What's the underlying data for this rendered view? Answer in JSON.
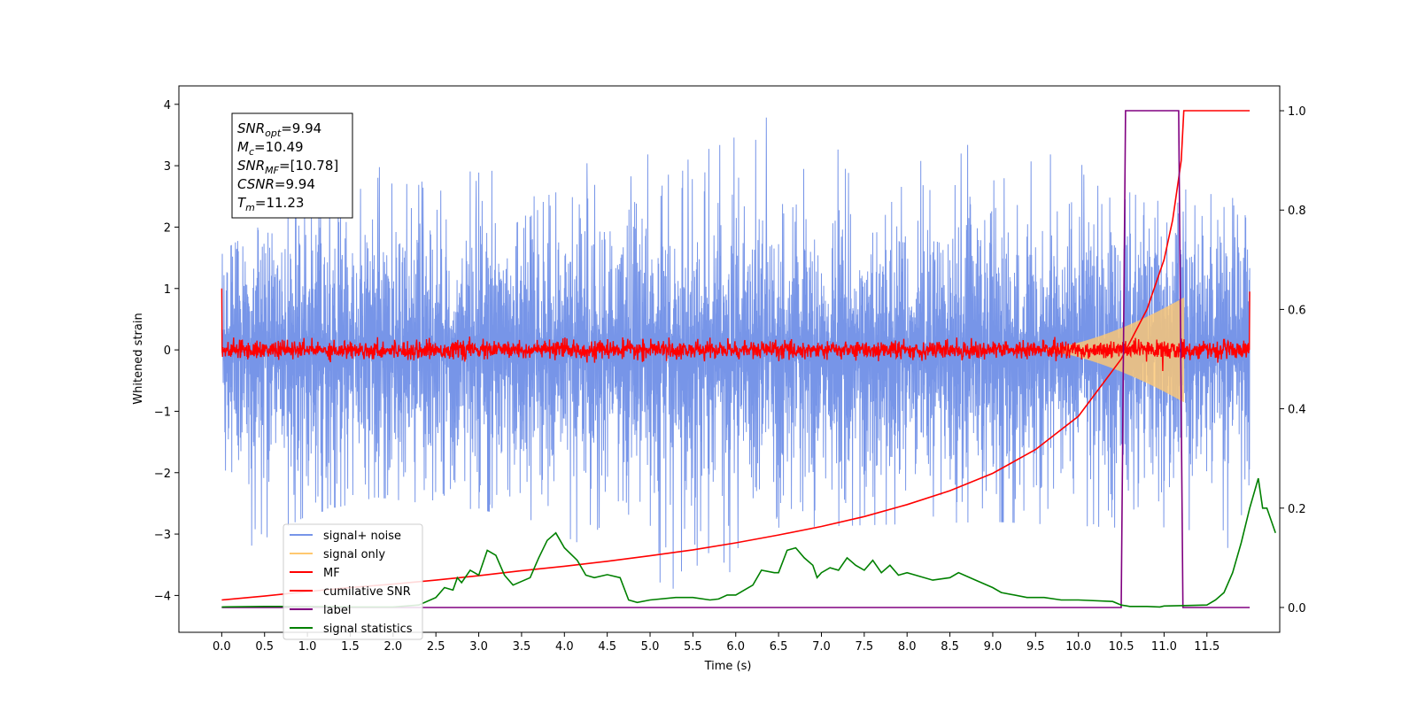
{
  "chart_data": {
    "type": "line",
    "xlabel": "Time (s)",
    "ylabel": "Whitened strain",
    "xlim": [
      -0.5,
      12.35
    ],
    "ylim": [
      -4.6,
      4.3
    ],
    "y2lim": [
      -0.05,
      1.05
    ],
    "x_ticks": [
      "0.0",
      "0.5",
      "1.0",
      "1.5",
      "2.0",
      "2.5",
      "3.0",
      "3.5",
      "4.0",
      "4.5",
      "5.0",
      "5.5",
      "6.0",
      "6.5",
      "7.0",
      "7.5",
      "8.0",
      "8.5",
      "9.0",
      "9.5",
      "10.0",
      "10.5",
      "11.0",
      "11.5"
    ],
    "y_ticks": [
      "4",
      "3",
      "2",
      "1",
      "0",
      "−1",
      "−2",
      "−3",
      "−4"
    ],
    "y2_ticks": [
      "1.0",
      "0.8",
      "0.6",
      "0.4",
      "0.2",
      "0.0"
    ],
    "info_lines": [
      {
        "name": "SNR",
        "sub": "opt",
        "value": "=9.94"
      },
      {
        "name": "M",
        "sub": "c",
        "value": "=10.49"
      },
      {
        "name": "SNR",
        "sub": "MF",
        "value": "=[10.78]"
      },
      {
        "name": "CSNR",
        "sub": "",
        "value": "=9.94"
      },
      {
        "name": "T",
        "sub": "m",
        "value": "=11.23"
      }
    ],
    "legend": {
      "position": "lower-left",
      "entries": [
        {
          "label": "signal+ noise",
          "color": "#7795e8"
        },
        {
          "label": "signal only",
          "color": "#ffc870"
        },
        {
          "label": "MF",
          "color": "#ff0000"
        },
        {
          "label": "cumilative SNR",
          "color": "#ff0000"
        },
        {
          "label": "label",
          "color": "#800080"
        },
        {
          "label": "signal statistics",
          "color": "#008000"
        }
      ]
    },
    "series": [
      {
        "name": "signal+ noise",
        "axis": "left",
        "color": "#7795e8",
        "style": "noise-band",
        "x_range": [
          0,
          12.0
        ],
        "envelope_max": [
          [
            0,
            1.6
          ],
          [
            1.5,
            3.0
          ],
          [
            3,
            2.9
          ],
          [
            4.8,
            3.1
          ],
          [
            6.45,
            3.9
          ],
          [
            7.5,
            3.0
          ],
          [
            9.1,
            3.45
          ],
          [
            10.5,
            2.8
          ],
          [
            11.9,
            2.45
          ],
          [
            12.0,
            1.9
          ]
        ],
        "envelope_min": [
          [
            0,
            -3.45
          ],
          [
            1.0,
            -2.7
          ],
          [
            1.8,
            -2.4
          ],
          [
            3.5,
            -2.7
          ],
          [
            5.73,
            -4.2
          ],
          [
            6.4,
            -2.9
          ],
          [
            9.0,
            -2.8
          ],
          [
            10.5,
            -2.9
          ],
          [
            11.9,
            -3.3
          ],
          [
            12.0,
            -3.55
          ]
        ],
        "typical_amplitude": 1.5
      },
      {
        "name": "signal only",
        "axis": "left",
        "color": "#ffc870",
        "style": "chirp",
        "x_range": [
          9.5,
          11.23
        ],
        "peak_amplitude": 0.85
      },
      {
        "name": "MF",
        "axis": "left",
        "color": "#ff0000",
        "style": "noise-band",
        "x_range": [
          0,
          12.0
        ],
        "typical_amplitude": 0.12,
        "endpoints": [
          1.0,
          0.95
        ]
      },
      {
        "name": "cumilative SNR",
        "axis": "right",
        "color": "#ff0000",
        "points": [
          [
            0,
            0.015
          ],
          [
            0.5,
            0.023
          ],
          [
            1,
            0.032
          ],
          [
            1.5,
            0.04
          ],
          [
            2,
            0.047
          ],
          [
            2.5,
            0.055
          ],
          [
            3,
            0.064
          ],
          [
            3.5,
            0.074
          ],
          [
            4,
            0.083
          ],
          [
            4.5,
            0.093
          ],
          [
            5,
            0.104
          ],
          [
            5.5,
            0.116
          ],
          [
            6,
            0.13
          ],
          [
            6.5,
            0.146
          ],
          [
            7,
            0.163
          ],
          [
            7.5,
            0.183
          ],
          [
            8,
            0.207
          ],
          [
            8.5,
            0.235
          ],
          [
            9,
            0.27
          ],
          [
            9.5,
            0.318
          ],
          [
            10,
            0.385
          ],
          [
            10.5,
            0.5
          ],
          [
            10.8,
            0.6
          ],
          [
            11.0,
            0.7
          ],
          [
            11.1,
            0.78
          ],
          [
            11.2,
            0.9
          ],
          [
            11.23,
            1.0
          ],
          [
            12.0,
            1.0
          ]
        ]
      },
      {
        "name": "label",
        "axis": "right",
        "color": "#800080",
        "points": [
          [
            0,
            0
          ],
          [
            10.5,
            0
          ],
          [
            10.55,
            1
          ],
          [
            11.17,
            1
          ],
          [
            11.22,
            0
          ],
          [
            12.0,
            0
          ]
        ]
      },
      {
        "name": "signal statistics",
        "axis": "right",
        "color": "#008000",
        "points": [
          [
            0,
            0.001
          ],
          [
            0.5,
            0.002
          ],
          [
            1,
            0.002
          ],
          [
            1.5,
            0.001
          ],
          [
            2,
            0.001
          ],
          [
            2.3,
            0.005
          ],
          [
            2.5,
            0.02
          ],
          [
            2.6,
            0.04
          ],
          [
            2.7,
            0.035
          ],
          [
            2.75,
            0.06
          ],
          [
            2.8,
            0.05
          ],
          [
            2.9,
            0.075
          ],
          [
            3.0,
            0.065
          ],
          [
            3.1,
            0.115
          ],
          [
            3.2,
            0.105
          ],
          [
            3.3,
            0.065
          ],
          [
            3.4,
            0.045
          ],
          [
            3.6,
            0.06
          ],
          [
            3.7,
            0.1
          ],
          [
            3.8,
            0.135
          ],
          [
            3.9,
            0.15
          ],
          [
            4.0,
            0.12
          ],
          [
            4.15,
            0.095
          ],
          [
            4.25,
            0.065
          ],
          [
            4.35,
            0.06
          ],
          [
            4.5,
            0.066
          ],
          [
            4.65,
            0.06
          ],
          [
            4.75,
            0.015
          ],
          [
            4.85,
            0.01
          ],
          [
            5.0,
            0.015
          ],
          [
            5.3,
            0.02
          ],
          [
            5.5,
            0.02
          ],
          [
            5.7,
            0.015
          ],
          [
            5.8,
            0.017
          ],
          [
            5.9,
            0.025
          ],
          [
            6.0,
            0.025
          ],
          [
            6.1,
            0.035
          ],
          [
            6.2,
            0.045
          ],
          [
            6.3,
            0.075
          ],
          [
            6.45,
            0.07
          ],
          [
            6.5,
            0.07
          ],
          [
            6.6,
            0.115
          ],
          [
            6.7,
            0.12
          ],
          [
            6.8,
            0.1
          ],
          [
            6.9,
            0.085
          ],
          [
            6.95,
            0.06
          ],
          [
            7.0,
            0.07
          ],
          [
            7.1,
            0.08
          ],
          [
            7.2,
            0.075
          ],
          [
            7.3,
            0.1
          ],
          [
            7.4,
            0.085
          ],
          [
            7.5,
            0.075
          ],
          [
            7.6,
            0.095
          ],
          [
            7.7,
            0.07
          ],
          [
            7.8,
            0.085
          ],
          [
            7.9,
            0.065
          ],
          [
            8.0,
            0.07
          ],
          [
            8.1,
            0.065
          ],
          [
            8.3,
            0.055
          ],
          [
            8.5,
            0.06
          ],
          [
            8.6,
            0.07
          ],
          [
            8.8,
            0.055
          ],
          [
            9.0,
            0.04
          ],
          [
            9.1,
            0.03
          ],
          [
            9.4,
            0.02
          ],
          [
            9.6,
            0.02
          ],
          [
            9.8,
            0.015
          ],
          [
            10.0,
            0.015
          ],
          [
            10.4,
            0.012
          ],
          [
            10.5,
            0.005
          ],
          [
            10.6,
            0.002
          ],
          [
            10.8,
            0.002
          ],
          [
            10.95,
            0.001
          ],
          [
            11.0,
            0.003
          ],
          [
            11.3,
            0.004
          ],
          [
            11.5,
            0.005
          ],
          [
            11.6,
            0.015
          ],
          [
            11.7,
            0.03
          ],
          [
            11.8,
            0.07
          ],
          [
            11.9,
            0.13
          ],
          [
            12.0,
            0.2
          ],
          [
            12.1,
            0.26
          ],
          [
            12.15,
            0.2
          ],
          [
            12.2,
            0.2
          ],
          [
            12.3,
            0.15
          ]
        ]
      }
    ]
  }
}
